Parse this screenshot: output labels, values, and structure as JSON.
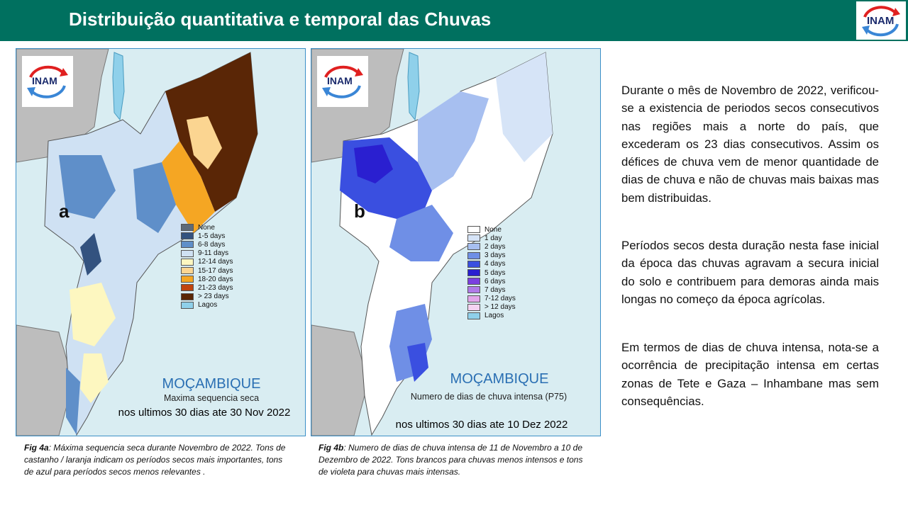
{
  "header": {
    "title": "Distribuição quantitativa e temporal das Chuvas",
    "logo_text": "INAM"
  },
  "map_a": {
    "letter": "a",
    "logo_text": "INAM",
    "legend": [
      {
        "label": "None",
        "color": "#5e6a78"
      },
      {
        "label": "1-5 days",
        "color": "#33527f"
      },
      {
        "label": "6-8 days",
        "color": "#5f8fc9"
      },
      {
        "label": "9-11 days",
        "color": "#cfe1f3"
      },
      {
        "label": "12-14 days",
        "color": "#fdf7c0"
      },
      {
        "label": "15-17 days",
        "color": "#fbd591"
      },
      {
        "label": "18-20 days",
        "color": "#f5a623"
      },
      {
        "label": "21-23 days",
        "color": "#c1440e"
      },
      {
        "label": "> 23 days",
        "color": "#5a2606"
      },
      {
        "label": "Lagos",
        "color": "#8fd0ea"
      }
    ],
    "title": "MOÇAMBIQUE",
    "subtitle": "Maxima sequencia seca",
    "period": "nos ultimos 30 dias ate 30 Nov 2022"
  },
  "map_b": {
    "letter": "b",
    "logo_text": "INAM",
    "legend": [
      {
        "label": "None",
        "color": "#ffffff"
      },
      {
        "label": "1 day",
        "color": "#d6e4f7"
      },
      {
        "label": "2 days",
        "color": "#a7bff0"
      },
      {
        "label": "3 days",
        "color": "#6f8fe6"
      },
      {
        "label": "4 days",
        "color": "#3a4fe0"
      },
      {
        "label": "5 days",
        "color": "#2a1fd0"
      },
      {
        "label": "6 days",
        "color": "#7b3fe0"
      },
      {
        "label": "7 days",
        "color": "#b07ae8"
      },
      {
        "label": "7-12 days",
        "color": "#e3a6ea"
      },
      {
        "label": "> 12 days",
        "color": "#f5d3f2"
      },
      {
        "label": "Lagos",
        "color": "#8fd0ea"
      }
    ],
    "title": "MOÇAMBIQUE",
    "subtitle": "Numero de dias de chuva intensa (P75)",
    "period": "nos ultimos 30 dias ate 10 Dez 2022"
  },
  "captions": {
    "a_label": "Fig 4a",
    "a_text": ":  Máxima sequencia seca durante Novembro de 2022.  Tons de castanho / laranja indicam os períodos secos mais importantes, tons de azul para períodos secos menos relevantes .",
    "b_label": "Fig 4b",
    "b_text": ":   Numero de dias de chuva intensa de 11 de Novembro a 10 de Dezembro de 2022. Tons brancos para chuvas menos intensos e tons de violeta para chuvas mais intensas."
  },
  "body": {
    "p1": "Durante o mês de Novembro de  2022, verificou-se a existencia de periodos secos consecutivos nas regiões mais a norte do país, que excederam os 23 dias consecutivos. Assim os défices de chuva vem de menor quantidade de dias de chuva e não de chuvas mais baixas mas bem distribuidas.",
    "p2": "Períodos secos desta duração nesta fase inicial da época das chuvas agravam a secura inicial do solo e contribuem para demoras ainda mais longas no começo da época agrícolas.",
    "p3": "Em termos de dias de chuva intensa, nota-se a ocorrência de precipitação intensa em certas zonas de Tete e Gaza – Inhambane mas sem consequências."
  }
}
